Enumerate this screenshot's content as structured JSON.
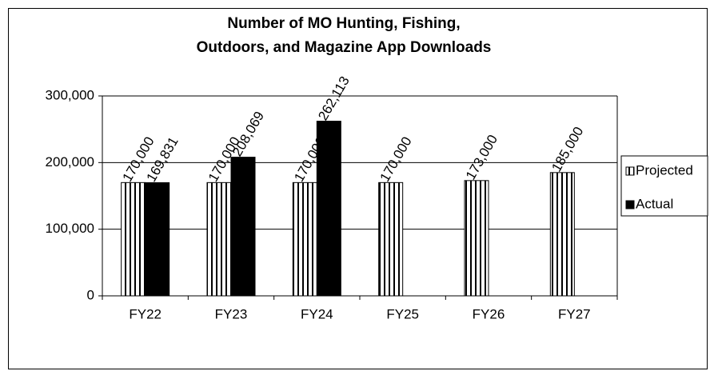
{
  "chart_data": {
    "type": "bar",
    "title": [
      "Number of MO Hunting, Fishing,",
      "Outdoors, and Magazine App Downloads"
    ],
    "categories": [
      "FY22",
      "FY23",
      "FY24",
      "FY25",
      "FY26",
      "FY27"
    ],
    "series": [
      {
        "name": "Projected",
        "color": "#000000",
        "hatch": "vertical",
        "values": [
          170000,
          170000,
          170000,
          170000,
          173000,
          185000
        ],
        "value_labels": [
          "170,000",
          "170,000",
          "170,000",
          "170,000",
          "173,000",
          "185,000"
        ]
      },
      {
        "name": "Actual",
        "color": "#000000",
        "hatch": "none",
        "values": [
          169831,
          208069,
          262113,
          null,
          null,
          null
        ],
        "value_labels": [
          "169,831",
          "208,069",
          "262,113",
          null,
          null,
          null
        ]
      }
    ],
    "ylim": [
      0,
      300000
    ],
    "yticks": [
      0,
      {
        "value": 100000,
        "label": "100,000"
      },
      {
        "value": 200000,
        "label": "200,000"
      },
      {
        "value": 300000,
        "label": "300,000"
      }
    ],
    "grid": true,
    "legend": "right"
  }
}
